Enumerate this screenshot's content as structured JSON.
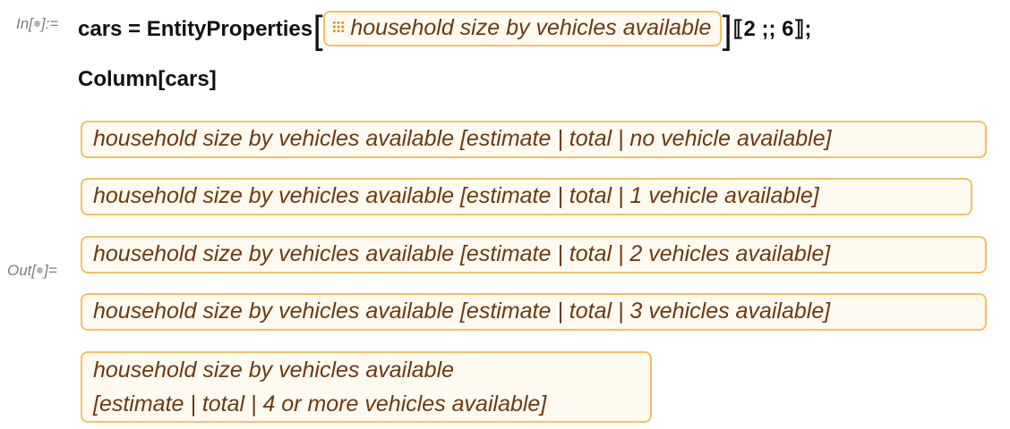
{
  "input": {
    "label": "In[",
    "label_end": "]:=",
    "line1_start": "cars = EntityProperties",
    "entity_chip": "household size by vehicles available",
    "line1_end": "⟦2 ;; 6⟧;",
    "line2": "Column[cars]"
  },
  "output": {
    "label": "Out[",
    "label_end": "]=",
    "properties": [
      "household size by vehicles available [estimate | total | no vehicle available]",
      "household size by vehicles available [estimate | total | 1 vehicle available]",
      "household size by vehicles available [estimate | total | 2 vehicles available]",
      "household size by vehicles available [estimate | total | 3 vehicles available]"
    ],
    "last_property": {
      "line1": "household size by vehicles available",
      "line2": "[estimate | total | 4 or more vehicles available]"
    }
  },
  "colors": {
    "chip_border": "#f0c25e",
    "chip_bg": "#fffaf0",
    "chip_text": "#6b3a10",
    "icon": "#e28a1b"
  }
}
